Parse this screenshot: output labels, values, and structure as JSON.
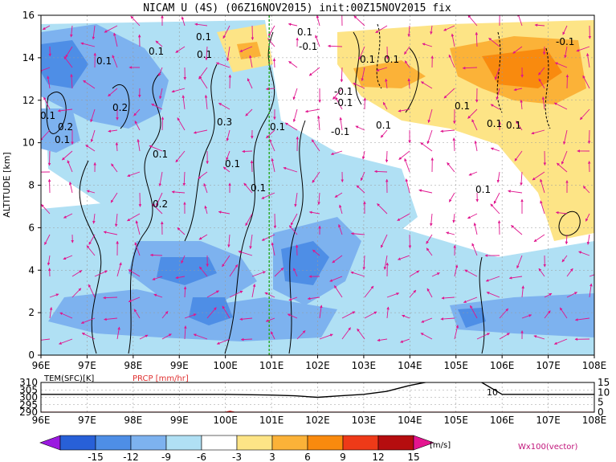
{
  "chart_data": [
    {
      "type": "heatmap",
      "title": "NICAM U (4S) (06Z16NOV2015) init:00Z15NOV2015 fix",
      "xlabel": "",
      "ylabel": "ALTITUDE [km]",
      "x_ticks": [
        "96E",
        "97E",
        "98E",
        "99E",
        "100E",
        "101E",
        "102E",
        "103E",
        "104E",
        "105E",
        "106E",
        "107E",
        "108E"
      ],
      "xlim": [
        96,
        108
      ],
      "y_ticks": [
        "0",
        "2",
        "4",
        "6",
        "8",
        "10",
        "12",
        "14",
        "16"
      ],
      "ylim": [
        0,
        16
      ],
      "grid": true,
      "marker_line_lon": 100.95,
      "contour_labels": [
        "0.1",
        "0.1",
        "0.1",
        "0.1",
        "0.2",
        "0.1",
        "0.1",
        "0.2",
        "0.3",
        "0.1",
        "0.1",
        "0.1",
        "0.2",
        "0.1",
        "0.1",
        "-0.1",
        "0.1",
        "-0.1",
        "0.1",
        "-0.1",
        "-0.1",
        "0.1",
        "0.1",
        "0.1",
        "0.1",
        "-0.1",
        "0.1"
      ],
      "vector_label": "Wx100(vector)"
    },
    {
      "type": "line",
      "title": "",
      "series": [
        {
          "name": "TEM(SFC)[K]",
          "x": [
            96,
            97,
            98,
            99,
            100,
            101,
            101.5,
            102,
            102.5,
            103,
            103.5,
            104,
            104.5,
            105,
            105.5,
            106,
            107,
            108
          ],
          "values": [
            302,
            302,
            302,
            302,
            302,
            301.5,
            301,
            300,
            301,
            302,
            304,
            308,
            311,
            311,
            311,
            302,
            302,
            302
          ]
        },
        {
          "name": "PRCP [mm/hr]",
          "x": [
            96,
            100,
            100.1,
            100.2,
            108
          ],
          "values": [
            0,
            0,
            0.5,
            0,
            0
          ]
        }
      ],
      "left_ticks": [
        "310",
        "305",
        "300",
        "295",
        "290"
      ],
      "left_range": [
        290,
        310
      ],
      "right_ticks": [
        "15",
        "10",
        "5",
        "0"
      ],
      "right_range": [
        0,
        15
      ],
      "x_ticks": [
        "96E",
        "97E",
        "98E",
        "99E",
        "100E",
        "101E",
        "102E",
        "103E",
        "104E",
        "105E",
        "106E",
        "107E",
        "108E"
      ],
      "annotation": "10"
    }
  ],
  "colorbar": {
    "levels": [
      "-15",
      "-12",
      "-9",
      "-6",
      "-3",
      "3",
      "6",
      "9",
      "12",
      "15"
    ],
    "colors": [
      "#9a19e0",
      "#2860d8",
      "#4e8ee6",
      "#7db2ef",
      "#b0e0f4",
      "#ffffff",
      "#fde486",
      "#fbb238",
      "#f98a0e",
      "#ee3a18",
      "#b50d0f",
      "#e4148f"
    ],
    "unit": "[m/s]"
  }
}
